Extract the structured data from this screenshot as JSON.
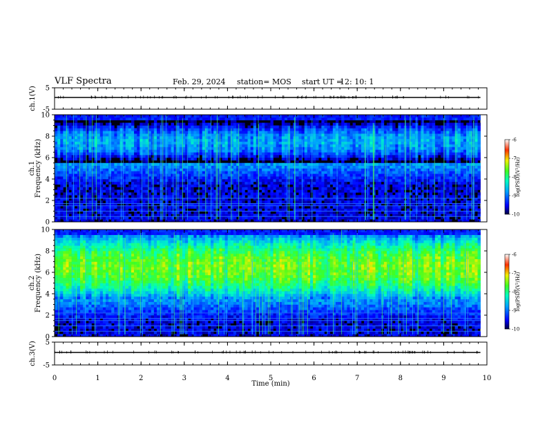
{
  "header": {
    "title": "VLF Spectra",
    "date": "Feb. 29, 2024",
    "station": "station= MOS",
    "start_ut_label": "start  UT =",
    "start_ut_value": "12: 10: 1"
  },
  "chart_data": [
    {
      "type": "line",
      "panel": "ch1-waveform",
      "ylabel": "ch.1(V)",
      "yticks": [
        "5",
        "-5"
      ],
      "ylim": [
        -5,
        5
      ],
      "xlim": [
        0,
        10
      ],
      "series": [
        {
          "values_note": "",
          "level": 0
        }
      ]
    },
    {
      "type": "heatmap",
      "panel": "ch1-spectrogram",
      "ylabel_line1": "ch.1",
      "ylabel_line2": "Frequency (kHz)",
      "yticks": [
        "0",
        "2",
        "4",
        "6",
        "8",
        "10"
      ],
      "ylim": [
        0,
        10
      ],
      "xlim": [
        0,
        9.85
      ],
      "band_kHz": [
        5.5,
        9.5
      ],
      "band_peak_log_psd": -8.2,
      "colorbar": {
        "label": "log(PSD)(V²/Hz)",
        "ticks": [
          "-6",
          "-7",
          "-8",
          "-9",
          "-10"
        ],
        "range": [
          -10,
          -6
        ]
      }
    },
    {
      "type": "heatmap",
      "panel": "ch2-spectrogram",
      "ylabel_line1": "ch.2",
      "ylabel_line2": "Frequency (kHz)",
      "yticks": [
        "0",
        "2",
        "4",
        "6",
        "8",
        "10"
      ],
      "ylim": [
        0,
        10
      ],
      "xlim": [
        0,
        9.85
      ],
      "band_kHz": [
        3.5,
        9.5
      ],
      "band_peak_log_psd": -7.0,
      "colorbar": {
        "label": "log(PSD)(V²/Hz)",
        "ticks": [
          "-6",
          "-7",
          "-8",
          "-9",
          "-10"
        ],
        "range": [
          -10,
          -6
        ]
      }
    },
    {
      "type": "line",
      "panel": "ch3-waveform",
      "ylabel": "ch.3(V)",
      "yticks": [
        "5",
        "-5"
      ],
      "ylim": [
        -5,
        5
      ],
      "xlim": [
        0,
        10
      ],
      "series": [
        {
          "values_note": "",
          "level": 0
        }
      ]
    }
  ],
  "xaxis": {
    "label": "Time (min)",
    "ticks": [
      "0",
      "1",
      "2",
      "3",
      "4",
      "5",
      "6",
      "7",
      "8",
      "9",
      "10"
    ],
    "range": [
      0,
      10
    ]
  }
}
